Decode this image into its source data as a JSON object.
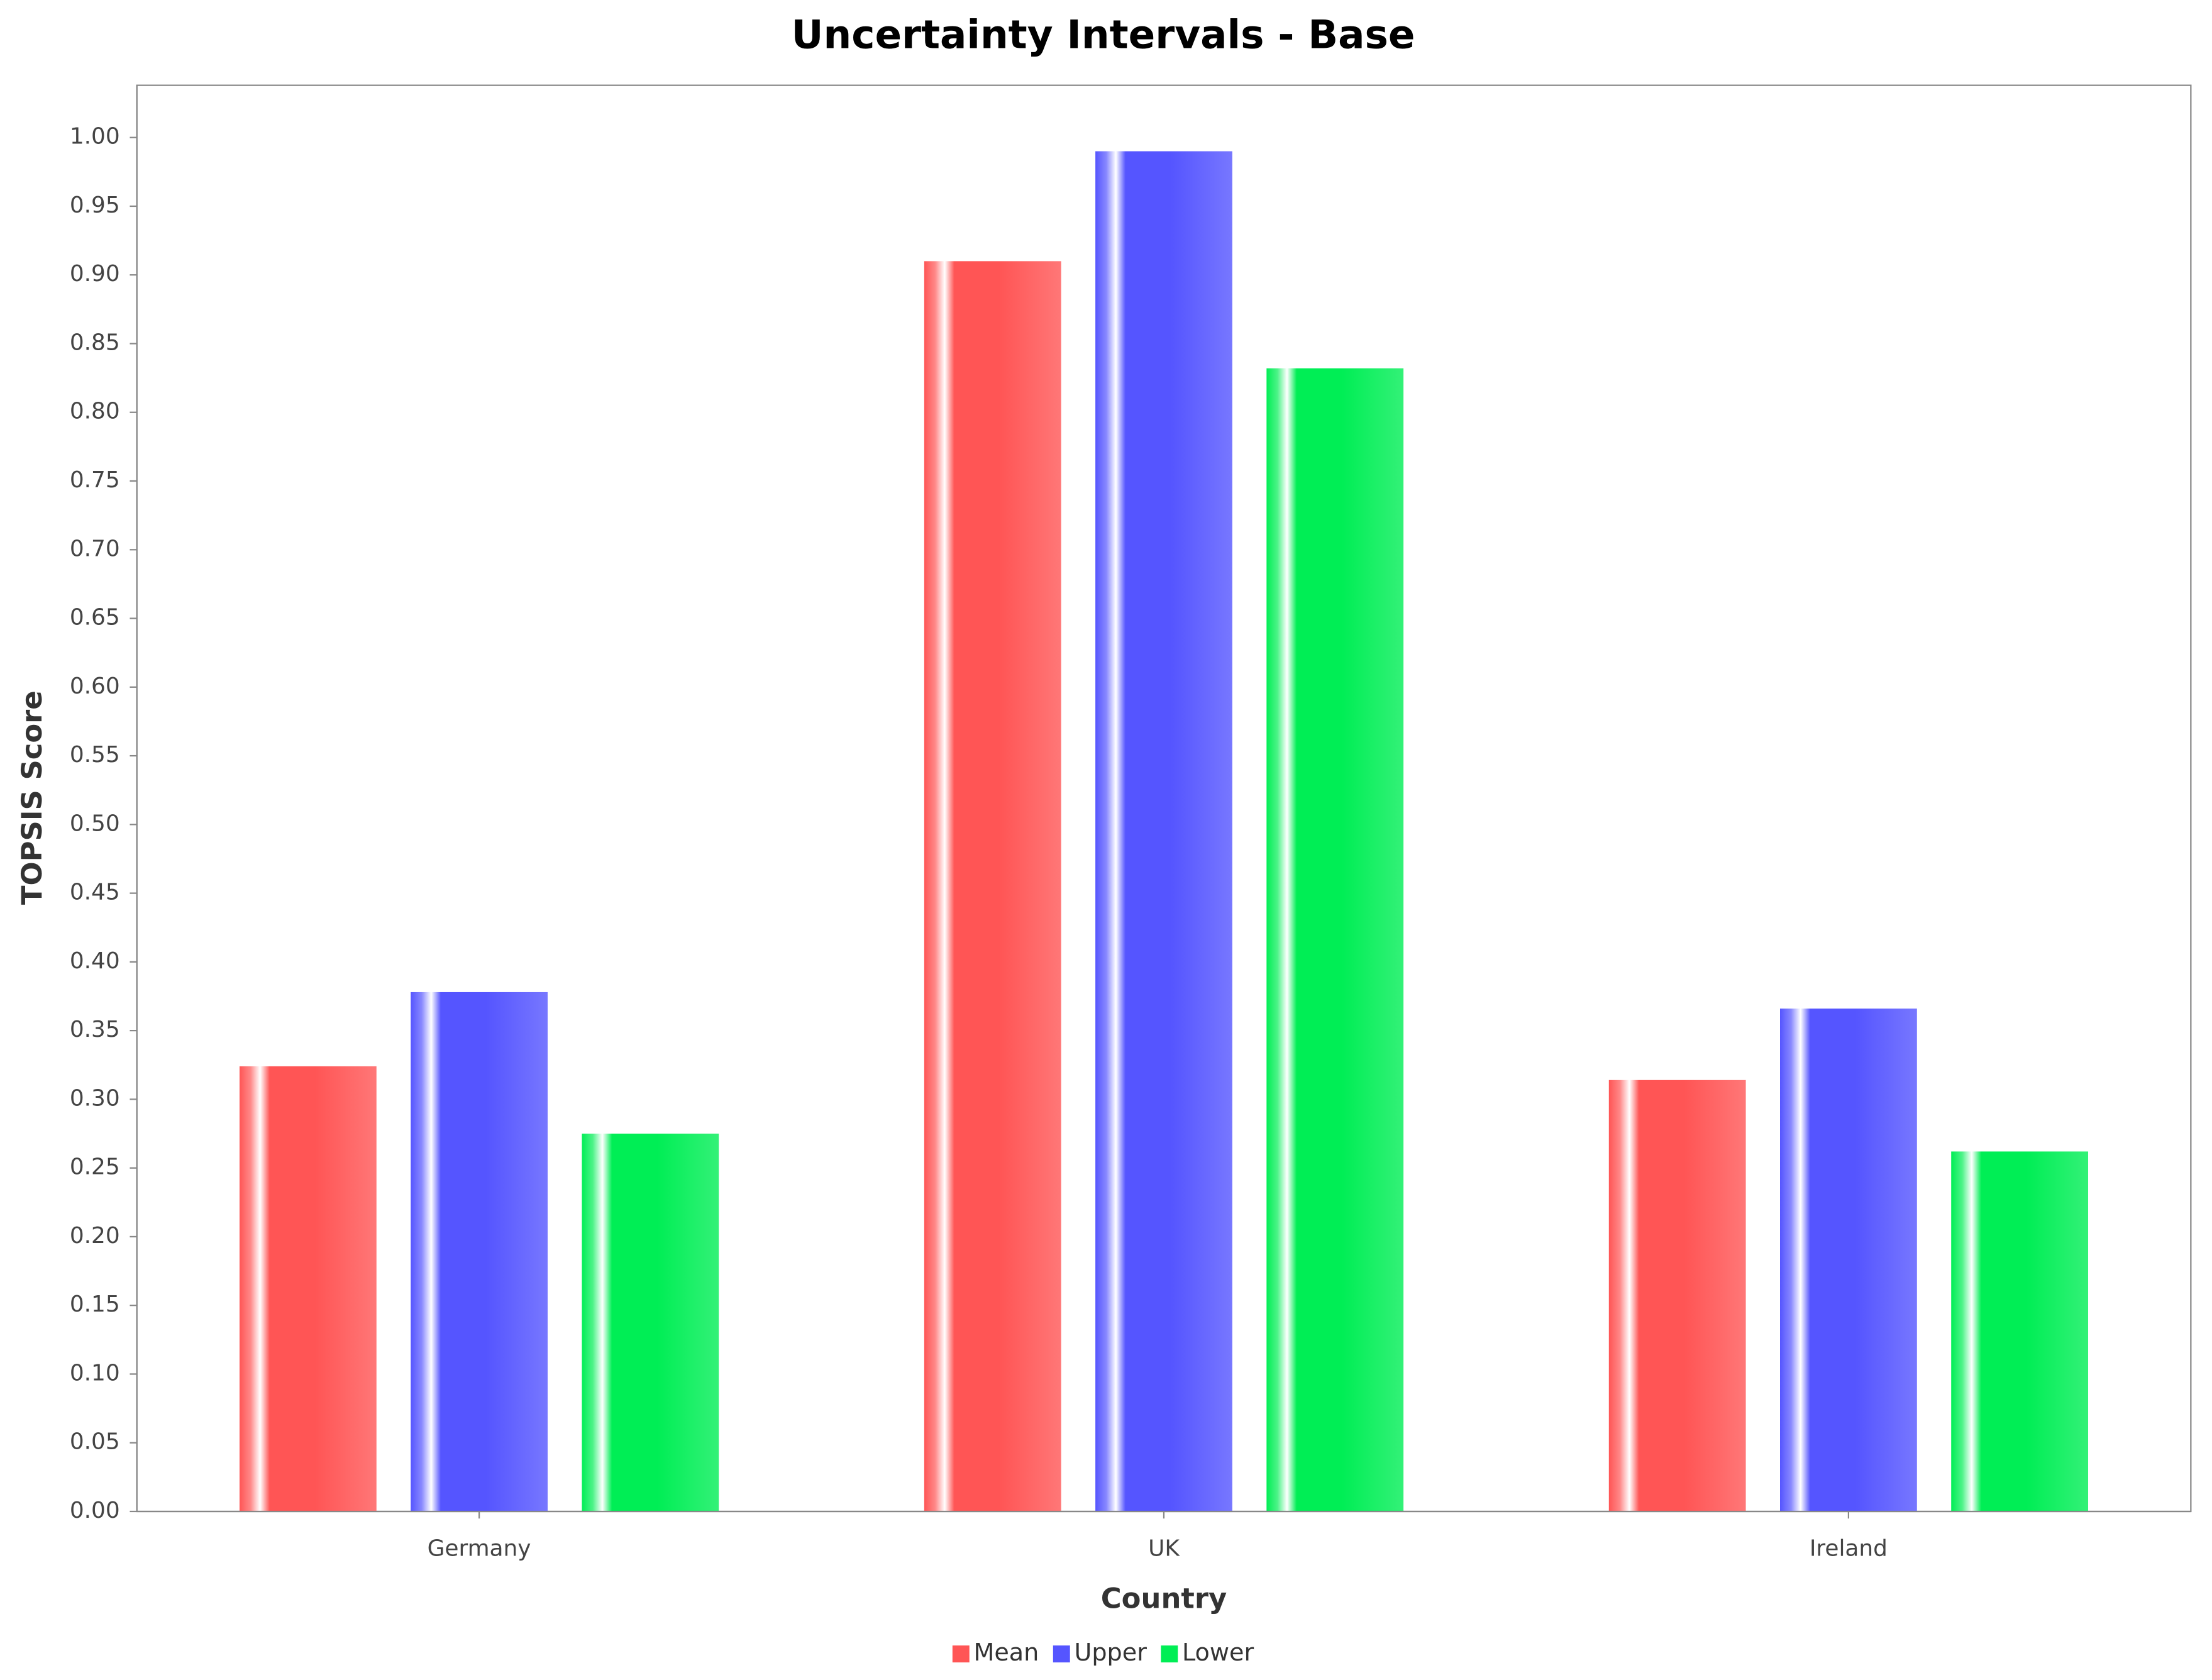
{
  "chart_data": {
    "type": "bar",
    "title": "Uncertainty Intervals - Base",
    "x_label": "Country",
    "y_label": "TOPSIS Score",
    "categories": [
      "Germany",
      "UK",
      "Ireland"
    ],
    "series": [
      {
        "name": "Mean",
        "color": "#ff5555",
        "values": [
          0.324,
          0.91,
          0.314
        ]
      },
      {
        "name": "Upper",
        "color": "#5555ff",
        "values": [
          0.378,
          0.99,
          0.366
        ]
      },
      {
        "name": "Lower",
        "color": "#00ee55",
        "values": [
          0.275,
          0.832,
          0.262
        ]
      }
    ],
    "ylim": [
      0,
      1.038
    ],
    "yticks": [
      {
        "value": 0,
        "label": "0.00"
      },
      {
        "value": 0.05,
        "label": "0.05"
      },
      {
        "value": 0.1,
        "label": "0.10"
      },
      {
        "value": 0.15,
        "label": "0.15"
      },
      {
        "value": 0.2,
        "label": "0.20"
      },
      {
        "value": 0.25,
        "label": "0.25"
      },
      {
        "value": 0.3,
        "label": "0.30"
      },
      {
        "value": 0.35,
        "label": "0.35"
      },
      {
        "value": 0.4,
        "label": "0.40"
      },
      {
        "value": 0.45,
        "label": "0.45"
      },
      {
        "value": 0.5,
        "label": "0.50"
      },
      {
        "value": 0.55,
        "label": "0.55"
      },
      {
        "value": 0.6,
        "label": "0.60"
      },
      {
        "value": 0.65,
        "label": "0.65"
      },
      {
        "value": 0.7,
        "label": "0.70"
      },
      {
        "value": 0.75,
        "label": "0.75"
      },
      {
        "value": 0.8,
        "label": "0.80"
      },
      {
        "value": 0.85,
        "label": "0.85"
      },
      {
        "value": 0.9,
        "label": "0.90"
      },
      {
        "value": 0.95,
        "label": "0.95"
      },
      {
        "value": 1,
        "label": "1.00"
      }
    ],
    "grid": false,
    "legend": "bottom"
  }
}
